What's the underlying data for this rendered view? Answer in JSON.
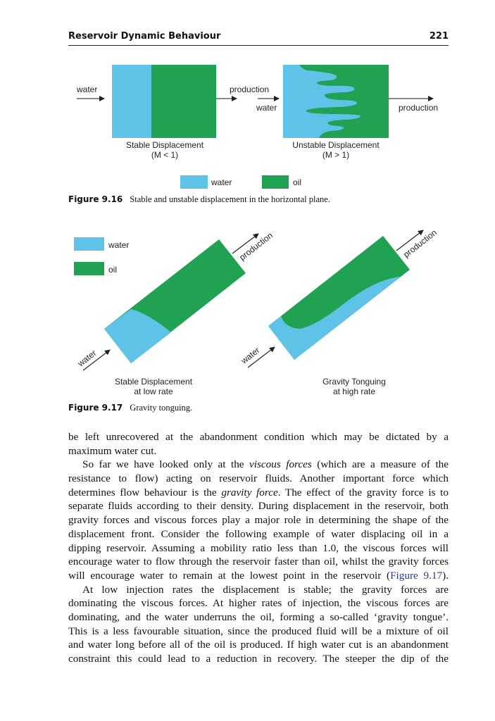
{
  "header": {
    "title": "Reservoir Dynamic Behaviour",
    "page_number": "221"
  },
  "colors": {
    "water": "#5fc3e8",
    "oil": "#21a152"
  },
  "figure_9_16": {
    "label": "Figure 9.16",
    "caption": "Stable and unstable displacement in the horizontal plane.",
    "left": {
      "inlet": "water",
      "outlet": "production",
      "title": "Stable Displacement",
      "subtitle": "(M < 1)"
    },
    "right": {
      "inlet": "water",
      "outlet": "production",
      "title": "Unstable Displacement",
      "subtitle": "(M > 1)"
    },
    "legend": [
      {
        "label": "water"
      },
      {
        "label": "oil"
      }
    ]
  },
  "figure_9_17": {
    "label": "Figure 9.17",
    "caption": "Gravity tonguing.",
    "legend": [
      {
        "label": "water"
      },
      {
        "label": "oil"
      }
    ],
    "left": {
      "inlet": "water",
      "outlet": "production",
      "title": "Stable Displacement",
      "subtitle": "at low rate"
    },
    "right": {
      "inlet": "water",
      "outlet": "production",
      "title": "Gravity Tonguing",
      "subtitle": "at high rate"
    }
  },
  "body": {
    "lines": [
      {
        "segs": [
          {
            "t": "be left unrecovered at the abandonment condition which may be dictated by a"
          }
        ]
      },
      {
        "last": true,
        "segs": [
          {
            "t": "maximum water cut."
          }
        ]
      },
      {
        "indent": true,
        "segs": [
          {
            "t": "So far we have looked only at the "
          },
          {
            "t": "viscous forces",
            "s": "it"
          },
          {
            "t": " (which are a measure of the"
          }
        ]
      },
      {
        "segs": [
          {
            "t": "resistance to flow) acting on reservoir fluids. Another important force which"
          }
        ]
      },
      {
        "segs": [
          {
            "t": "determines flow behaviour is the "
          },
          {
            "t": "gravity force",
            "s": "it"
          },
          {
            "t": ". The effect of the gravity force is to"
          }
        ]
      },
      {
        "segs": [
          {
            "t": "separate fluids according to their density. During displacement in the reservoir, both"
          }
        ]
      },
      {
        "segs": [
          {
            "t": "gravity forces and viscous forces play a major role in determining the shape of the"
          }
        ]
      },
      {
        "segs": [
          {
            "t": "displacement front. Consider the following example of water displacing oil in a"
          }
        ]
      },
      {
        "segs": [
          {
            "t": "dipping reservoir. Assuming a mobility ratio less than 1.0, the viscous forces will"
          }
        ]
      },
      {
        "segs": [
          {
            "t": "encourage water to flow through the reservoir faster than oil, whilst the gravity forces"
          }
        ]
      },
      {
        "segs": [
          {
            "t": "will encourage water to remain at the lowest point in the reservoir ("
          },
          {
            "t": "Figure 9.17",
            "s": "lk"
          },
          {
            "t": ")."
          }
        ]
      },
      {
        "indent": true,
        "segs": [
          {
            "t": "At low injection rates the displacement is stable; the gravity forces are"
          }
        ]
      },
      {
        "segs": [
          {
            "t": "dominating the viscous forces. At higher rates of injection, the viscous forces are"
          }
        ]
      },
      {
        "segs": [
          {
            "t": "dominating, and the water underruns the oil, forming a so-called ‘gravity tongue’."
          }
        ]
      },
      {
        "segs": [
          {
            "t": "This is a less favourable situation, since the produced fluid will be a mixture of oil"
          }
        ]
      },
      {
        "segs": [
          {
            "t": "and water long before all of the oil is produced. If high water cut is an abandonment"
          }
        ]
      },
      {
        "segs": [
          {
            "t": "constraint this could lead to a reduction in recovery. The steeper the dip of the"
          }
        ]
      }
    ]
  }
}
